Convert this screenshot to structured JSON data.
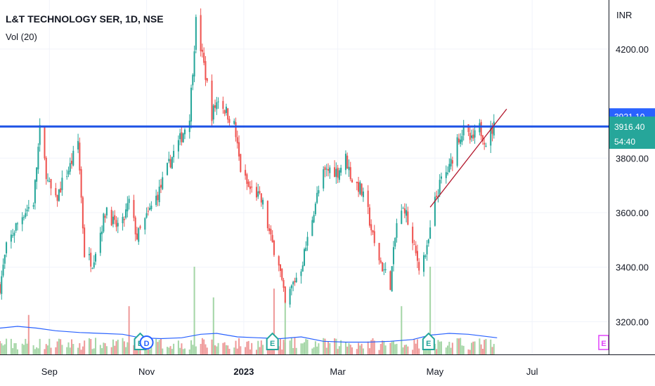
{
  "header": {
    "title": "L&T TECHNOLOGY SER, 1D, NSE",
    "indicator": "Vol (20)"
  },
  "colors": {
    "up": "#26a69a",
    "down": "#ef5350",
    "up_vol": "#a5d6a7",
    "down_vol": "#ef9a9a",
    "resistance": "#1e53e5",
    "trendline": "#b2162b",
    "vol_ma": "#2962ff",
    "grid": "#f0f3fa",
    "axis": "#131722",
    "badge_blue": "#2962ff",
    "badge_green": "#26a69a",
    "earnings": "#26a69a",
    "dividend": "#2962ff",
    "event_pink": "#e040fb"
  },
  "chart_data": {
    "type": "candlestick",
    "currency": "INR",
    "ylim": [
      3080,
      4380
    ],
    "x_range": [
      "2022-08-01",
      "2023-08-18"
    ],
    "grid": true,
    "y_ticks": [
      3200,
      3400,
      3600,
      3800,
      4200
    ],
    "y_tick_labels": [
      "3200.00",
      "3400.00",
      "3600.00",
      "3800.00",
      "4200.00"
    ],
    "x_ticks": [
      {
        "date": "2022-09-01",
        "label": "Sep",
        "bold": false
      },
      {
        "date": "2022-11-01",
        "label": "Nov",
        "bold": false
      },
      {
        "date": "2023-01-01",
        "label": "2023",
        "bold": true
      },
      {
        "date": "2023-03-01",
        "label": "Mar",
        "bold": false
      },
      {
        "date": "2023-05-01",
        "label": "May",
        "bold": false
      },
      {
        "date": "2023-07-01",
        "label": "Jul",
        "bold": false
      }
    ],
    "price_path": [
      [
        "2022-08-01",
        3330
      ],
      [
        "2022-08-05",
        3470
      ],
      [
        "2022-08-11",
        3550
      ],
      [
        "2022-08-16",
        3600
      ],
      [
        "2022-08-22",
        3640
      ],
      [
        "2022-08-26",
        3900
      ],
      [
        "2022-08-31",
        3710
      ],
      [
        "2022-09-05",
        3640
      ],
      [
        "2022-09-09",
        3710
      ],
      [
        "2022-09-14",
        3770
      ],
      [
        "2022-09-19",
        3860
      ],
      [
        "2022-09-23",
        3450
      ],
      [
        "2022-09-28",
        3420
      ],
      [
        "2022-10-03",
        3530
      ],
      [
        "2022-10-07",
        3620
      ],
      [
        "2022-10-12",
        3550
      ],
      [
        "2022-10-17",
        3560
      ],
      [
        "2022-10-21",
        3640
      ],
      [
        "2022-10-26",
        3510
      ],
      [
        "2022-10-31",
        3570
      ],
      [
        "2022-11-04",
        3620
      ],
      [
        "2022-11-09",
        3680
      ],
      [
        "2022-11-14",
        3760
      ],
      [
        "2022-11-18",
        3820
      ],
      [
        "2022-11-23",
        3880
      ],
      [
        "2022-11-28",
        3960
      ],
      [
        "2022-12-02",
        4300
      ],
      [
        "2022-12-07",
        4140
      ],
      [
        "2022-12-12",
        3960
      ],
      [
        "2022-12-16",
        4020
      ],
      [
        "2022-12-21",
        3970
      ],
      [
        "2022-12-26",
        3920
      ],
      [
        "2022-12-30",
        3760
      ],
      [
        "2023-01-04",
        3690
      ],
      [
        "2023-01-09",
        3670
      ],
      [
        "2023-01-13",
        3630
      ],
      [
        "2023-01-18",
        3500
      ],
      [
        "2023-01-23",
        3420
      ],
      [
        "2023-01-27",
        3260
      ],
      [
        "2023-02-01",
        3340
      ],
      [
        "2023-02-06",
        3400
      ],
      [
        "2023-02-10",
        3500
      ],
      [
        "2023-02-15",
        3640
      ],
      [
        "2023-02-20",
        3740
      ],
      [
        "2023-02-24",
        3760
      ],
      [
        "2023-03-01",
        3750
      ],
      [
        "2023-03-06",
        3800
      ],
      [
        "2023-03-10",
        3720
      ],
      [
        "2023-03-15",
        3690
      ],
      [
        "2023-03-20",
        3600
      ],
      [
        "2023-03-24",
        3480
      ],
      [
        "2023-03-29",
        3400
      ],
      [
        "2023-04-03",
        3340
      ],
      [
        "2023-04-07",
        3560
      ],
      [
        "2023-04-12",
        3620
      ],
      [
        "2023-04-17",
        3480
      ],
      [
        "2023-04-21",
        3410
      ],
      [
        "2023-04-26",
        3460
      ],
      [
        "2023-05-01",
        3640
      ],
      [
        "2023-05-05",
        3720
      ],
      [
        "2023-05-10",
        3760
      ],
      [
        "2023-05-15",
        3870
      ],
      [
        "2023-05-19",
        3900
      ],
      [
        "2023-05-24",
        3860
      ],
      [
        "2023-05-29",
        3910
      ],
      [
        "2023-06-02",
        3860
      ],
      [
        "2023-06-07",
        3916
      ]
    ],
    "volume_ma_path": [
      [
        "2022-08-01",
        0.3
      ],
      [
        "2022-08-12",
        0.32
      ],
      [
        "2022-08-24",
        0.3
      ],
      [
        "2022-09-05",
        0.27
      ],
      [
        "2022-09-20",
        0.25
      ],
      [
        "2022-10-03",
        0.24
      ],
      [
        "2022-10-17",
        0.23
      ],
      [
        "2022-10-28",
        0.19
      ],
      [
        "2022-11-10",
        0.18
      ],
      [
        "2022-11-23",
        0.19
      ],
      [
        "2022-12-05",
        0.23
      ],
      [
        "2022-12-15",
        0.24
      ],
      [
        "2022-12-28",
        0.2
      ],
      [
        "2023-01-10",
        0.19
      ],
      [
        "2023-01-24",
        0.18
      ],
      [
        "2023-02-06",
        0.2
      ],
      [
        "2023-02-20",
        0.15
      ],
      [
        "2023-03-06",
        0.14
      ],
      [
        "2023-03-20",
        0.14
      ],
      [
        "2023-04-03",
        0.15
      ],
      [
        "2023-04-17",
        0.17
      ],
      [
        "2023-04-28",
        0.22
      ],
      [
        "2023-05-10",
        0.24
      ],
      [
        "2023-05-22",
        0.23
      ],
      [
        "2023-05-31",
        0.21
      ],
      [
        "2023-06-09",
        0.19
      ]
    ],
    "volume_spikes": [
      [
        "2022-08-19",
        0.45,
        "down"
      ],
      [
        "2022-10-21",
        0.55,
        "down"
      ],
      [
        "2022-12-01",
        1.0,
        "up"
      ],
      [
        "2022-12-13",
        0.65,
        "up"
      ],
      [
        "2023-01-20",
        0.75,
        "down"
      ],
      [
        "2023-01-27",
        0.62,
        "up"
      ],
      [
        "2023-04-10",
        0.55,
        "up"
      ],
      [
        "2023-04-28",
        1.0,
        "up"
      ]
    ],
    "annotations": {
      "resistance_level": 3916,
      "trendline": {
        "from": [
          "2023-04-28",
          3620
        ],
        "to": [
          "2023-06-15",
          3980
        ]
      },
      "price_badges": [
        {
          "value": 3921.1,
          "label": "3921.10",
          "style": "blue"
        },
        {
          "value": 3916.4,
          "label": "3916.40",
          "sub_label": "54:40",
          "style": "green"
        }
      ],
      "currency_label": "INR",
      "event_markers": [
        {
          "date": "2022-10-28",
          "letter": "E",
          "kind": "earnings"
        },
        {
          "date": "2022-11-01",
          "letter": "D",
          "kind": "dividend"
        },
        {
          "date": "2023-01-19",
          "letter": "E",
          "kind": "earnings"
        },
        {
          "date": "2023-04-27",
          "letter": "E",
          "kind": "earnings"
        },
        {
          "date": "2023-08-18",
          "letter": "E",
          "kind": "upcoming"
        }
      ]
    }
  }
}
